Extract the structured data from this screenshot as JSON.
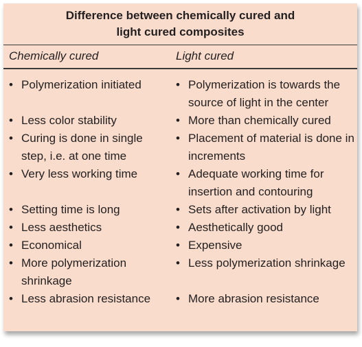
{
  "title": "Difference between chemically cured and light cured composites",
  "table": {
    "header": [
      "Chemically cured",
      "Light cured"
    ],
    "rows": [
      [
        "Polymerization initiated",
        "Polymerization is towards the source of light in the center"
      ],
      [
        "Less color stability",
        "More than chemically cured"
      ],
      [
        "Curing is done in single step, i.e. at one time",
        "Placement of material is done in increments"
      ],
      [
        "Very less working time",
        "Adequate working time for insertion and contouring"
      ],
      [
        "Setting time is long",
        "Sets after activation by light"
      ],
      [
        "Less aesthetics",
        "Aesthetically good"
      ],
      [
        "Economical",
        "Expensive"
      ],
      [
        "More polymerization shrinkage",
        "Less polymerization shrinkage"
      ],
      [
        "Less abrasion resistance",
        "More abrasion resistance"
      ]
    ]
  }
}
